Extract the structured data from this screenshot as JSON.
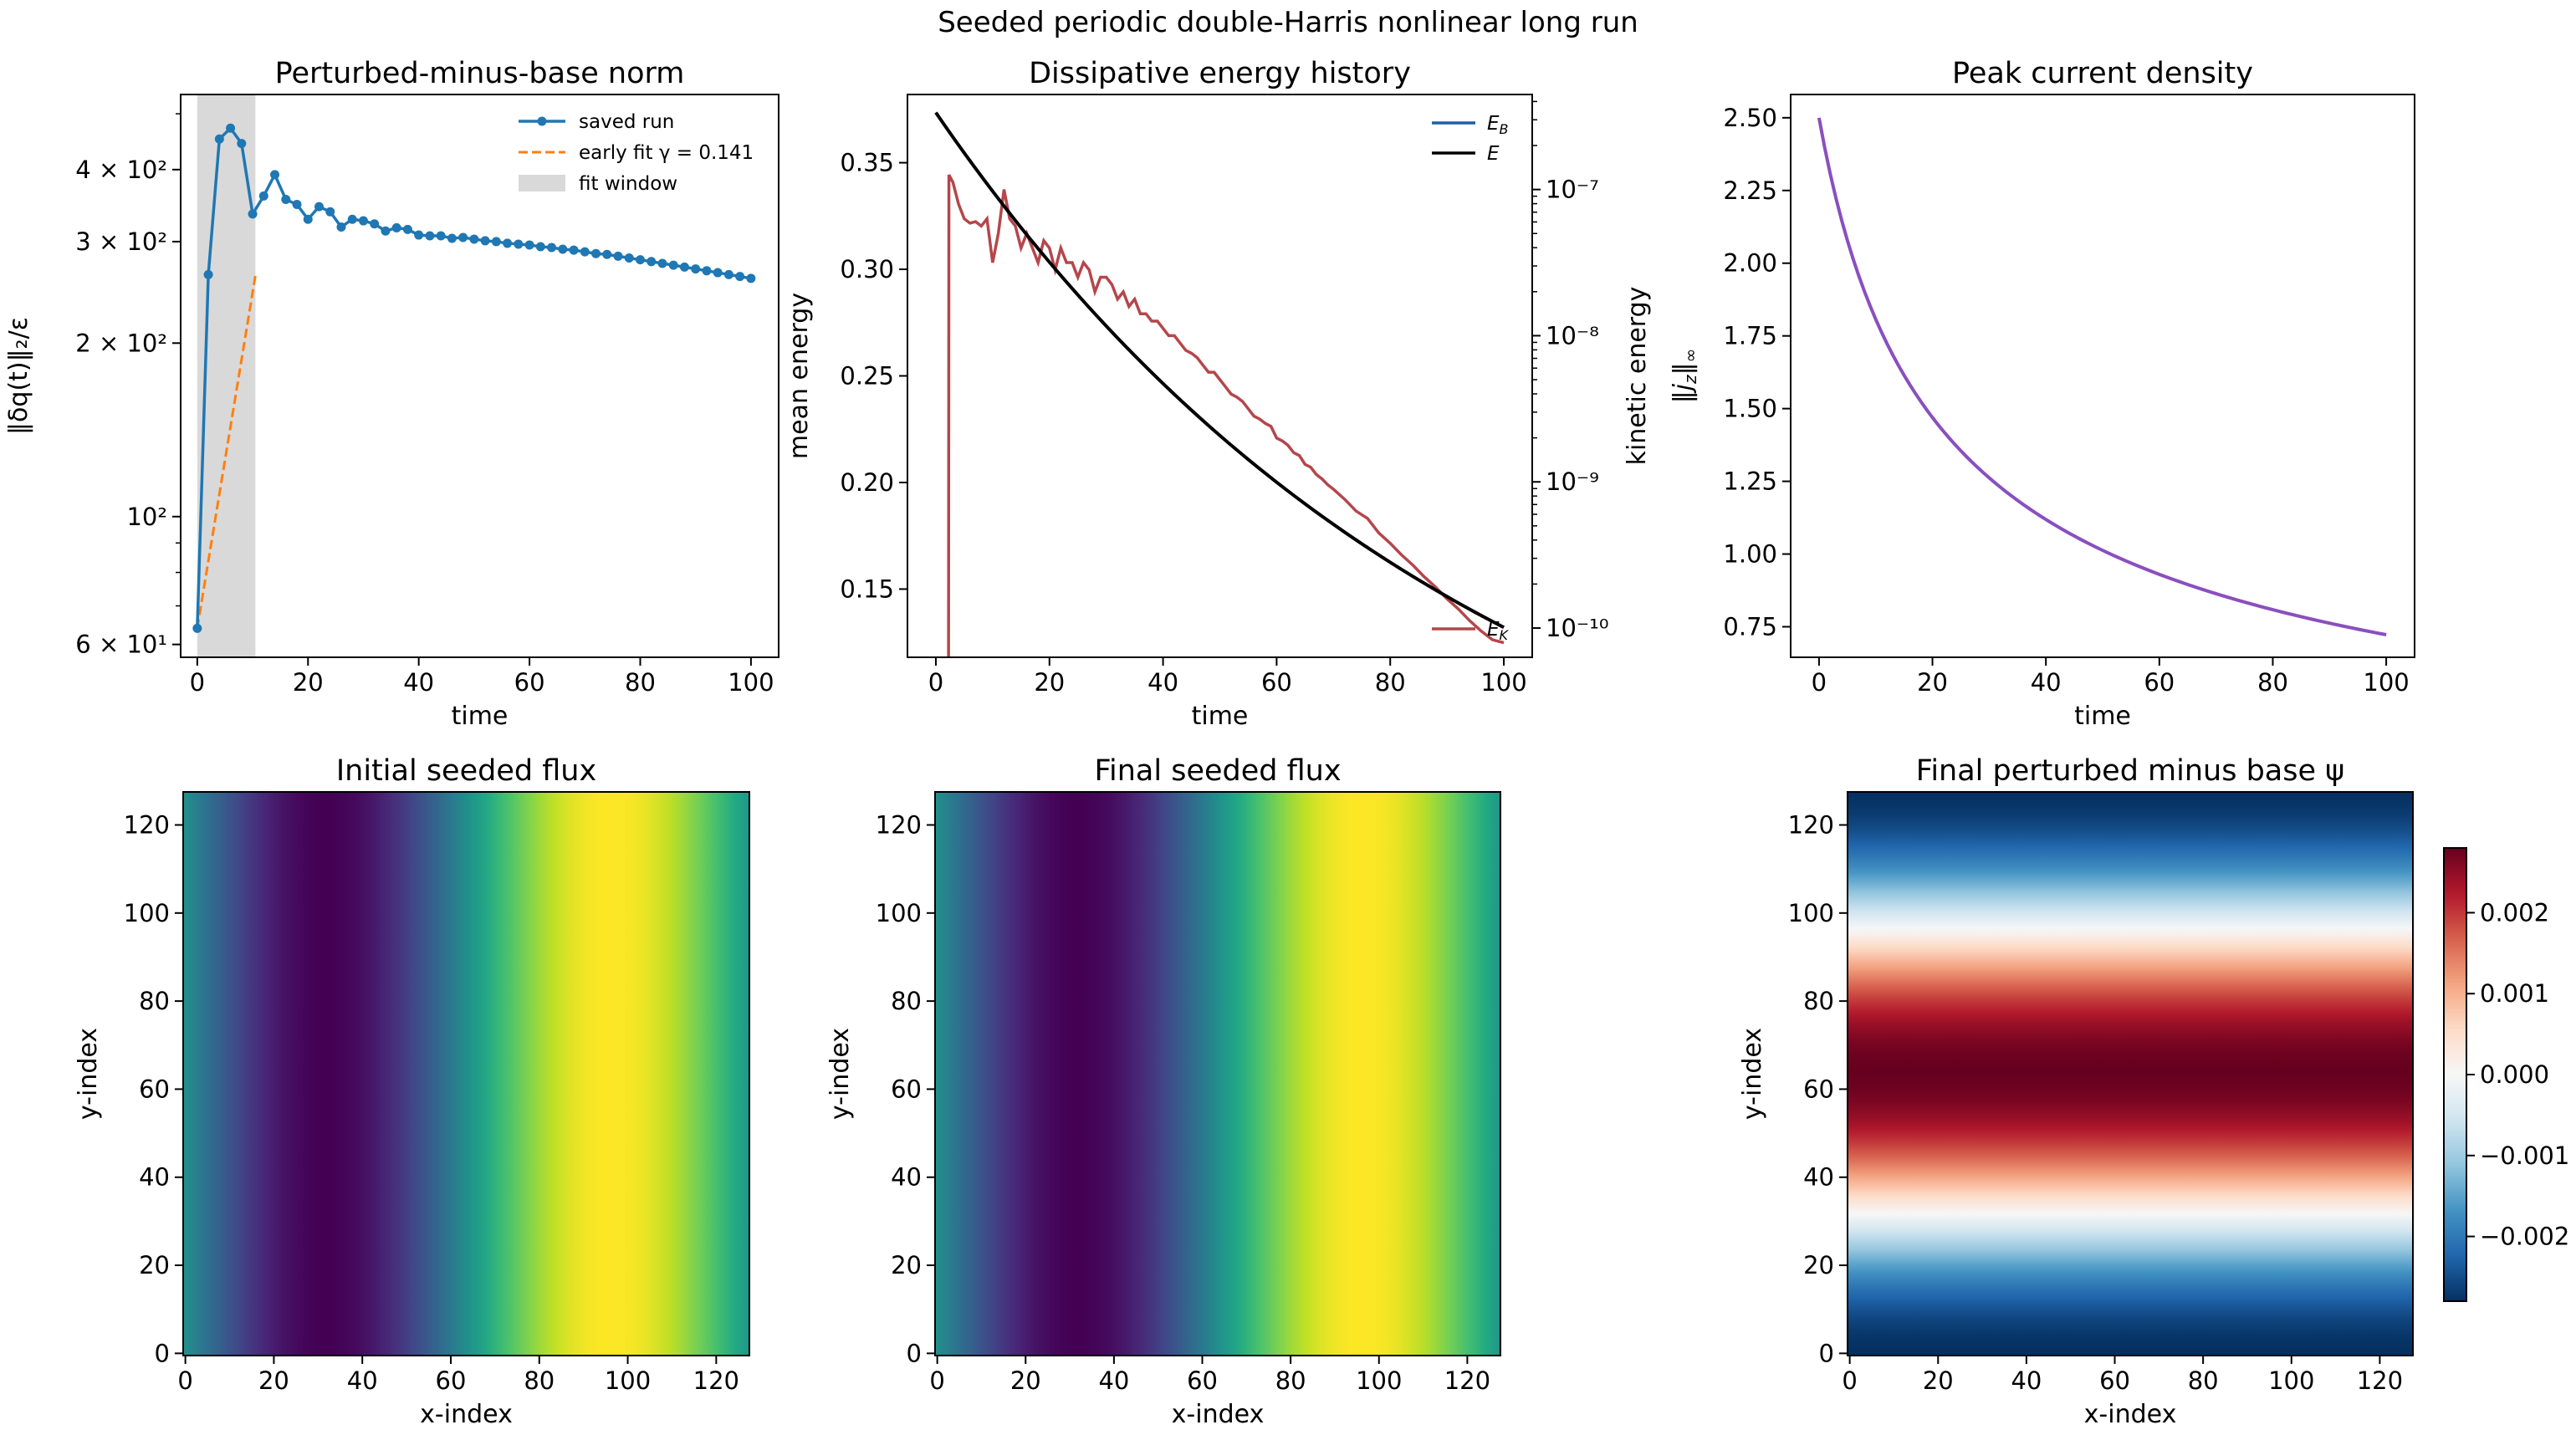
{
  "figure": {
    "suptitle": "Seeded periodic double-Harris nonlinear long run"
  },
  "chart_data": [
    {
      "id": "norm",
      "type": "line",
      "title": "Perturbed-minus-base norm",
      "xlabel": "time",
      "ylabel": "‖δq(t)‖₂/ε",
      "yscale": "log",
      "xlim": [
        -3,
        105
      ],
      "ylim": [
        57,
        540
      ],
      "xticks": [
        0,
        20,
        40,
        60,
        80,
        100
      ],
      "yticks": [
        {
          "value": 60,
          "label": "6 × 10¹"
        },
        {
          "value": 100,
          "label": "10²"
        },
        {
          "value": 200,
          "label": "2 × 10²"
        },
        {
          "value": 300,
          "label": "3 × 10²"
        },
        {
          "value": 400,
          "label": "4 × 10²"
        }
      ],
      "shaded_window": {
        "x": [
          0,
          10.5
        ],
        "label": "fit window",
        "color": "#d9d9d9"
      },
      "legend_position": "top-right",
      "series": [
        {
          "name": "saved run",
          "color": "#1f77b4",
          "style": "line-marker",
          "x": [
            0,
            2,
            4,
            6,
            8,
            10,
            12,
            14,
            16,
            18,
            20,
            22,
            24,
            26,
            28,
            30,
            32,
            34,
            36,
            38,
            40,
            42,
            44,
            46,
            48,
            50,
            52,
            54,
            56,
            58,
            60,
            62,
            64,
            66,
            68,
            70,
            72,
            74,
            76,
            78,
            80,
            82,
            84,
            86,
            88,
            90,
            92,
            94,
            96,
            98,
            100
          ],
          "y": [
            64,
            263,
            452,
            472,
            444,
            335,
            360,
            392,
            355,
            348,
            328,
            345,
            338,
            318,
            328,
            326,
            322,
            313,
            317,
            315,
            308,
            307,
            307,
            304,
            305,
            303,
            301,
            300,
            298,
            297,
            296,
            294,
            293,
            291,
            290,
            288,
            286,
            285,
            283,
            281,
            279,
            277,
            275,
            273,
            271,
            269,
            267,
            265,
            263,
            261,
            259
          ]
        },
        {
          "name": "early fit γ = 0.141",
          "color": "#ff7f0e",
          "style": "dashed",
          "x": [
            0,
            10.5
          ],
          "y": [
            64,
            262
          ]
        }
      ]
    },
    {
      "id": "energy",
      "type": "line",
      "title": "Dissipative energy history",
      "xlabel": "time",
      "ylabel": "mean energy",
      "ylabel_right": "kinetic energy",
      "xlim": [
        -5,
        105
      ],
      "ylim": [
        0.118,
        0.382
      ],
      "ylim_right_log10": [
        -10.2,
        -6.35
      ],
      "xticks": [
        0,
        20,
        40,
        60,
        80,
        100
      ],
      "yticks": [
        0.15,
        0.2,
        0.25,
        0.3,
        0.35
      ],
      "yticks_right": [
        {
          "value": -10,
          "label": "10⁻¹⁰"
        },
        {
          "value": -9,
          "label": "10⁻⁹"
        },
        {
          "value": -8,
          "label": "10⁻⁸"
        },
        {
          "value": -7,
          "label": "10⁻⁷"
        }
      ],
      "legend_left": {
        "position": "top-right",
        "entries": [
          {
            "name": "E_B",
            "color": "#1f5fa6"
          },
          {
            "name": "E",
            "color": "#000000"
          }
        ]
      },
      "legend_right": {
        "position": "bottom-right",
        "entries": [
          {
            "name": "E_K",
            "color": "#b5464b"
          }
        ]
      },
      "series": [
        {
          "name": "E_B",
          "color": "#1f5fa6",
          "axis": "left",
          "formula": "0.3735*exp(-0.0104*t)",
          "t": [
            0,
            100
          ]
        },
        {
          "name": "E",
          "color": "#000000",
          "axis": "left",
          "formula": "0.3735*exp(-0.0104*t)",
          "t": [
            0,
            100
          ]
        },
        {
          "name": "E_K",
          "color": "#b5464b",
          "axis": "right",
          "x": [
            2.2,
            2.3,
            3,
            4,
            5,
            6,
            7,
            8,
            9,
            10,
            11,
            12,
            13,
            14,
            15,
            16,
            17,
            18,
            19,
            20,
            21,
            22,
            23,
            24,
            25,
            26,
            27,
            28,
            29,
            30,
            31,
            32,
            33,
            34,
            35,
            36,
            37,
            38,
            39,
            40,
            41,
            42,
            43,
            44,
            45,
            46,
            47,
            48,
            49,
            50,
            51,
            52,
            53,
            54,
            55,
            56,
            57,
            58,
            59,
            60,
            61,
            62,
            63,
            64,
            65,
            66,
            67,
            68,
            69,
            70,
            72,
            74,
            76,
            78,
            80,
            82,
            84,
            86,
            88,
            90,
            92,
            94,
            96,
            98,
            100
          ],
          "log10_y": [
            -12,
            -6.9,
            -6.95,
            -7.1,
            -7.2,
            -7.23,
            -7.22,
            -7.25,
            -7.2,
            -7.5,
            -7.3,
            -7.0,
            -7.2,
            -7.25,
            -7.4,
            -7.3,
            -7.4,
            -7.5,
            -7.35,
            -7.4,
            -7.55,
            -7.4,
            -7.5,
            -7.5,
            -7.6,
            -7.5,
            -7.55,
            -7.7,
            -7.6,
            -7.6,
            -7.65,
            -7.75,
            -7.7,
            -7.8,
            -7.75,
            -7.85,
            -7.85,
            -7.9,
            -7.9,
            -7.95,
            -8.0,
            -8.0,
            -8.05,
            -8.1,
            -8.12,
            -8.15,
            -8.2,
            -8.25,
            -8.25,
            -8.3,
            -8.35,
            -8.4,
            -8.42,
            -8.45,
            -8.5,
            -8.55,
            -8.57,
            -8.6,
            -8.62,
            -8.7,
            -8.72,
            -8.75,
            -8.8,
            -8.82,
            -8.88,
            -8.9,
            -8.95,
            -8.98,
            -9.02,
            -9.05,
            -9.12,
            -9.2,
            -9.25,
            -9.35,
            -9.42,
            -9.5,
            -9.57,
            -9.65,
            -9.72,
            -9.8,
            -9.87,
            -9.95,
            -10.02,
            -10.08,
            -10.1
          ]
        }
      ]
    },
    {
      "id": "jpeak",
      "type": "line",
      "title": "Peak current density",
      "xlabel": "time",
      "ylabel": "‖jz‖∞",
      "xlim": [
        -5,
        105
      ],
      "ylim": [
        0.645,
        2.58
      ],
      "xticks": [
        0,
        20,
        40,
        60,
        80,
        100
      ],
      "yticks": [
        0.75,
        1.0,
        1.25,
        1.5,
        1.75,
        2.0,
        2.25,
        2.5
      ],
      "series": [
        {
          "name": "peak current",
          "color": "#8a4fbf",
          "formula": "2.5/(1+0.0642*t) with slight flattening",
          "t": [
            0,
            100
          ]
        }
      ]
    },
    {
      "id": "flux_initial",
      "type": "heatmap",
      "title": "Initial seeded flux",
      "xlabel": "x-index",
      "ylabel": "y-index",
      "colormap": "viridis",
      "grid": [
        128,
        128
      ],
      "pattern": "varies along x only; minimum near x≈32, maximum near x≈96",
      "xticks": [
        0,
        20,
        40,
        60,
        80,
        100,
        120
      ],
      "yticks": [
        0,
        20,
        40,
        60,
        80,
        100,
        120
      ]
    },
    {
      "id": "flux_final",
      "type": "heatmap",
      "title": "Final seeded flux",
      "xlabel": "x-index",
      "ylabel": "y-index",
      "colormap": "viridis",
      "grid": [
        128,
        128
      ],
      "pattern": "varies along x only; minimum near x≈32, maximum near x≈96",
      "xticks": [
        0,
        20,
        40,
        60,
        80,
        100,
        120
      ],
      "yticks": [
        0,
        20,
        40,
        60,
        80,
        100,
        120
      ]
    },
    {
      "id": "psi_diff",
      "type": "heatmap",
      "title": "Final perturbed minus base ψ",
      "xlabel": "x-index",
      "ylabel": "y-index",
      "colormap": "RdBu_r",
      "grid": [
        128,
        128
      ],
      "clim": [
        -0.0028,
        0.0028
      ],
      "pattern": "varies along y only; positive band centred at y≈64, negative at y≈0 and y≈128",
      "xticks": [
        0,
        20,
        40,
        60,
        80,
        100,
        120
      ],
      "yticks": [
        0,
        20,
        40,
        60,
        80,
        100,
        120
      ],
      "colorbar_ticks": [
        {
          "value": 0.002,
          "label": "0.002"
        },
        {
          "value": 0.001,
          "label": "0.001"
        },
        {
          "value": 0.0,
          "label": "0.000"
        },
        {
          "value": -0.001,
          "label": "−0.001"
        },
        {
          "value": -0.002,
          "label": "−0.002"
        }
      ]
    }
  ]
}
